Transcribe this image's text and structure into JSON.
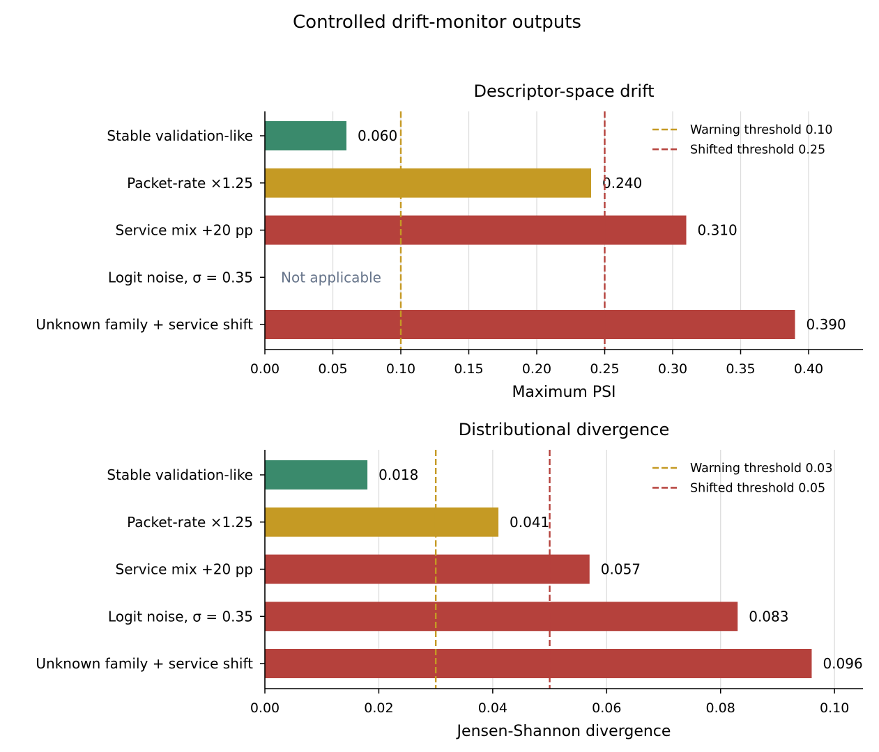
{
  "title": "Controlled drift-monitor outputs",
  "colors": {
    "stable": "#3a8a6c",
    "warning": "#c59a24",
    "shifted": "#b5413c",
    "na_text": "#66748a",
    "grid": "#dddddd"
  },
  "chart_data": [
    {
      "type": "bar",
      "orientation": "horizontal",
      "title": "Descriptor-space drift",
      "xlabel": "Maximum PSI",
      "ylabel": "",
      "xlim": [
        0,
        0.44
      ],
      "xticks": [
        "0.00",
        "0.05",
        "0.10",
        "0.15",
        "0.20",
        "0.25",
        "0.30",
        "0.35",
        "0.40"
      ],
      "xtick_values": [
        0,
        0.05,
        0.1,
        0.15,
        0.2,
        0.25,
        0.3,
        0.35,
        0.4
      ],
      "grid": "vertical",
      "legend_position": "top-right",
      "categories": [
        "Stable validation-like",
        "Packet-rate ×1.25",
        "Service mix +20 pp",
        "Logit noise, σ = 0.35",
        "Unknown family + service shift"
      ],
      "values": [
        0.06,
        0.24,
        0.31,
        null,
        0.39
      ],
      "value_labels": [
        "0.060",
        "0.240",
        "0.310",
        "Not applicable",
        "0.390"
      ],
      "bar_colors": [
        "#3a8a6c",
        "#c59a24",
        "#b5413c",
        null,
        "#b5413c"
      ],
      "thresholds": [
        {
          "label": "Warning threshold 0.10",
          "value": 0.1,
          "color": "#c59a24"
        },
        {
          "label": "Shifted threshold 0.25",
          "value": 0.25,
          "color": "#b5413c"
        }
      ]
    },
    {
      "type": "bar",
      "orientation": "horizontal",
      "title": "Distributional divergence",
      "xlabel": "Jensen-Shannon divergence",
      "ylabel": "",
      "xlim": [
        0,
        0.105
      ],
      "xticks": [
        "0.00",
        "0.02",
        "0.04",
        "0.06",
        "0.08",
        "0.10"
      ],
      "xtick_values": [
        0,
        0.02,
        0.04,
        0.06,
        0.08,
        0.1
      ],
      "grid": "vertical",
      "legend_position": "top-right",
      "categories": [
        "Stable validation-like",
        "Packet-rate ×1.25",
        "Service mix +20 pp",
        "Logit noise, σ = 0.35",
        "Unknown family + service shift"
      ],
      "values": [
        0.018,
        0.041,
        0.057,
        0.083,
        0.096
      ],
      "value_labels": [
        "0.018",
        "0.041",
        "0.057",
        "0.083",
        "0.096"
      ],
      "bar_colors": [
        "#3a8a6c",
        "#c59a24",
        "#b5413c",
        "#b5413c",
        "#b5413c"
      ],
      "thresholds": [
        {
          "label": "Warning threshold 0.03",
          "value": 0.03,
          "color": "#c59a24"
        },
        {
          "label": "Shifted threshold 0.05",
          "value": 0.05,
          "color": "#b5413c"
        }
      ]
    }
  ]
}
